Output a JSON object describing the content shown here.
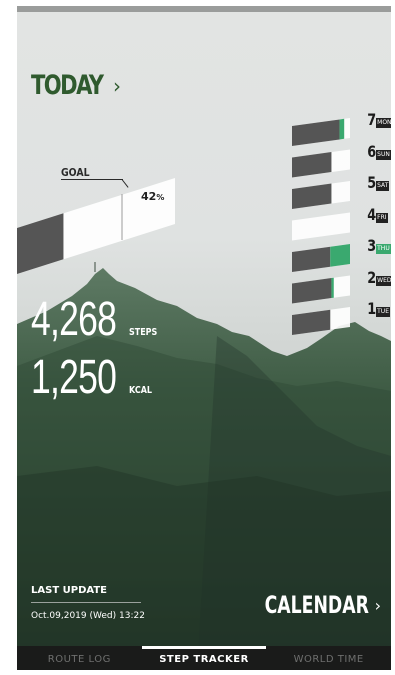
{
  "today": {
    "label": "TODAY",
    "chevron": "›"
  },
  "goal": {
    "label": "GOAL",
    "percent": "42",
    "percent_unit": "%",
    "progress": 0.42
  },
  "stats": {
    "steps": {
      "value": "4,268",
      "unit": "STEPS"
    },
    "kcal": {
      "value": "1,250",
      "unit": "KCAL"
    }
  },
  "week": [
    {
      "num": "7",
      "day": "MON",
      "highlight": false,
      "progress": 0.82,
      "accent": 0.08
    },
    {
      "num": "6",
      "day": "SUN",
      "highlight": false,
      "progress": 0.68,
      "accent": 0
    },
    {
      "num": "5",
      "day": "SAT",
      "highlight": false,
      "progress": 0.68,
      "accent": 0
    },
    {
      "num": "4",
      "day": "FRI",
      "highlight": false,
      "progress": 0.0,
      "accent": 0
    },
    {
      "num": "3",
      "day": "THU",
      "highlight": true,
      "progress": 0.66,
      "accent": 0.34
    },
    {
      "num": "2",
      "day": "WED",
      "highlight": false,
      "progress": 0.68,
      "accent": 0.04
    },
    {
      "num": "1",
      "day": "TUE",
      "highlight": false,
      "progress": 0.66,
      "accent": 0
    }
  ],
  "last_update": {
    "label": "LAST UPDATE",
    "datetime": "Oct.09,2019 (Wed) 13:22"
  },
  "calendar": {
    "label": "CALENDAR",
    "chevron": "›"
  },
  "tabs": [
    {
      "label": "ROUTE LOG",
      "active": false
    },
    {
      "label": "STEP TRACKER",
      "active": true
    },
    {
      "label": "WORLD TIME",
      "active": false
    }
  ],
  "colors": {
    "brand_green": "#2f5a2e",
    "accent_green": "#3aa96f",
    "dark_bar": "#555555"
  },
  "icons": {
    "today_chevron": "chevron-right-icon",
    "calendar_chevron": "chevron-right-icon"
  }
}
